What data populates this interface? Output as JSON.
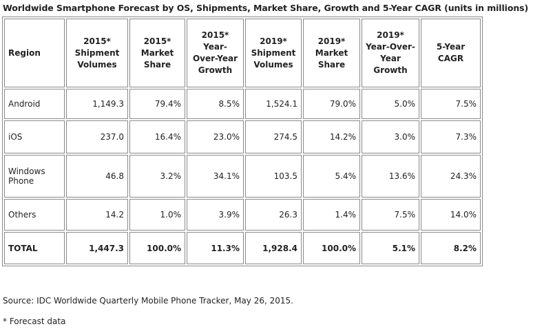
{
  "header": {
    "title": "Worldwide Smartphone Forecast by OS, Shipments, Market Share, Growth and 5-Year CAGR (units in millions)"
  },
  "table": {
    "columns": [
      "Region",
      "2015* Shipment Volumes",
      "2015* Market Share",
      "2015* Year-Over-Year Growth",
      "2019* Shipment Volumes",
      "2019* Market Share",
      "2019* Year-Over-Year Growth",
      "5-Year CAGR"
    ],
    "rows": [
      [
        "Android",
        "1,149.3",
        "79.4%",
        "8.5%",
        "1,524.1",
        "79.0%",
        "5.0%",
        "7.5%"
      ],
      [
        "iOS",
        "237.0",
        "16.4%",
        "23.0%",
        "274.5",
        "14.2%",
        "3.0%",
        "7.3%"
      ],
      [
        "Windows Phone",
        "46.8",
        "3.2%",
        "34.1%",
        "103.5",
        "5.4%",
        "13.6%",
        "24.3%"
      ],
      [
        "Others",
        "14.2",
        "1.0%",
        "3.9%",
        "26.3",
        "1.4%",
        "7.5%",
        "14.0%"
      ],
      [
        "TOTAL",
        "1,447.3",
        "100.0%",
        "11.3%",
        "1,928.4",
        "100.0%",
        "5.1%",
        "8.2%"
      ]
    ]
  },
  "footer": {
    "source": "Source: IDC Worldwide Quarterly Mobile Phone Tracker, May 26, 2015.",
    "note": "* Forecast data"
  }
}
